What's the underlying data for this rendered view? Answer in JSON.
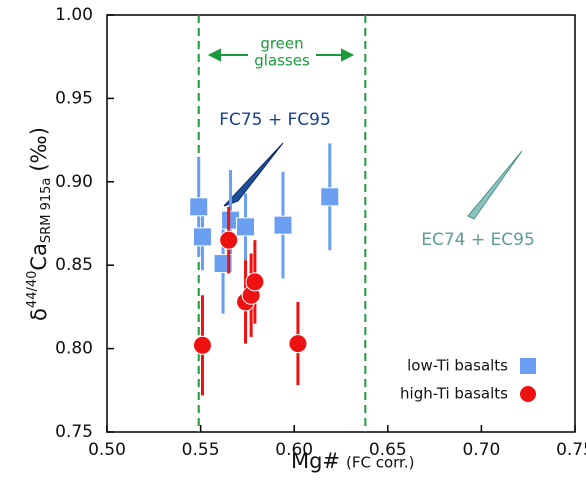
{
  "chart_data": {
    "type": "scatter",
    "xlabel": "Mg#",
    "xlabel_note": "(FC corr.)",
    "ylabel_parts": [
      "δ",
      "44/40",
      "Ca",
      "SRM 915a",
      "(‰)"
    ],
    "xlim": [
      0.5,
      0.75
    ],
    "ylim": [
      0.75,
      1.0
    ],
    "xticks": [
      {
        "value": 0.5,
        "label": "0.50"
      },
      0.55,
      {
        "value": 0.6,
        "label": "0.60"
      },
      0.65,
      {
        "value": 0.7,
        "label": "0.70"
      },
      0.75
    ],
    "yticks": [
      0.75,
      {
        "value": 0.8,
        "label": "0.80"
      },
      0.85,
      {
        "value": 0.9,
        "label": "0.90"
      },
      0.95,
      {
        "value": 1.0,
        "label": "1.00"
      }
    ],
    "vlines": [
      0.549,
      0.638
    ],
    "vline_color": "#1a9a3a",
    "annotations": {
      "green_glasses": [
        "green",
        "glasses"
      ],
      "fc": "FC75 + FC95",
      "ec": "EC74 + EC95"
    },
    "legend": "lower right",
    "series": [
      {
        "name": "low-Ti basalts",
        "color": "#6a9ef0",
        "marker": "square",
        "x": [
          0.549,
          0.551,
          0.562,
          0.566,
          0.574,
          0.594,
          0.619
        ],
        "values": [
          0.885,
          0.867,
          0.851,
          0.877,
          0.873,
          0.874,
          0.891
        ],
        "errors": [
          0.03,
          0.02,
          0.03,
          0.03,
          0.02,
          0.032,
          0.032
        ]
      },
      {
        "name": "high-Ti basalts",
        "color": "#ee1111",
        "marker": "circle",
        "x": [
          0.551,
          0.565,
          0.574,
          0.577,
          0.579,
          0.602
        ],
        "values": [
          0.802,
          0.865,
          0.828,
          0.832,
          0.84,
          0.803
        ],
        "errors": [
          0.03,
          0.02,
          0.025,
          0.025,
          0.025,
          0.025
        ]
      }
    ]
  }
}
